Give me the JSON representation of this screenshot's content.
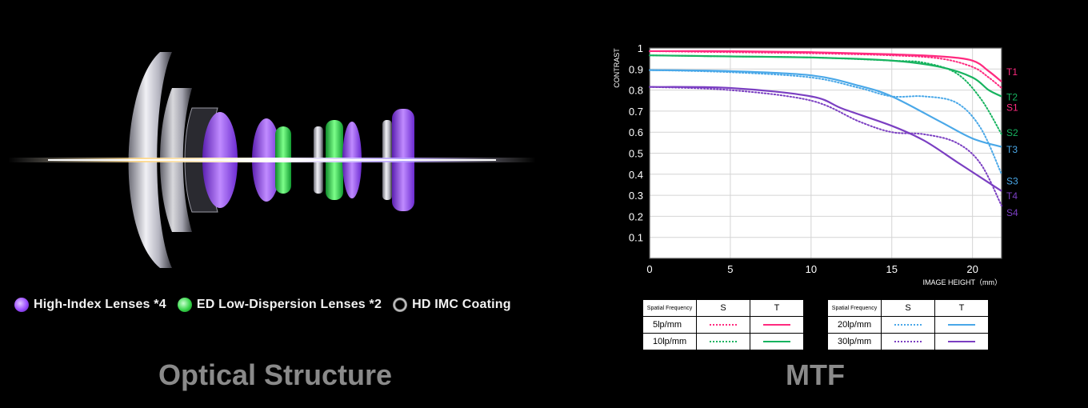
{
  "optical": {
    "title": "Optical Structure",
    "legend": [
      {
        "label": "High-Index Lenses *4",
        "color": "#9b4dff",
        "icon": "purple-lens-dot"
      },
      {
        "label": "ED Low-Dispersion Lenses *2",
        "color": "#37d64a",
        "icon": "green-lens-dot"
      },
      {
        "label": "HD IMC Coating",
        "color": "#ffffff",
        "icon": "coating-ring"
      }
    ]
  },
  "mtf": {
    "title": "MTF",
    "table_left": {
      "header": [
        "Spatial Frequency",
        "S",
        "T"
      ],
      "rows": [
        {
          "freq": "5lp/mm",
          "color": "#ff2a7f"
        },
        {
          "freq": "10lp/mm",
          "color": "#17b35f"
        }
      ]
    },
    "table_right": {
      "header": [
        "Spatial Frequency",
        "S",
        "T"
      ],
      "rows": [
        {
          "freq": "20lp/mm",
          "color": "#4aa8e8"
        },
        {
          "freq": "30lp/mm",
          "color": "#7b3fc2"
        }
      ]
    }
  },
  "chart_data": {
    "type": "line",
    "xlabel": "IMAGE HEIGHT（mm）",
    "ylabel": "CONTRAST",
    "xlim": [
      0,
      21.8
    ],
    "ylim": [
      0,
      1
    ],
    "xticks": [
      0,
      5,
      10,
      15,
      20
    ],
    "yticks": [
      0.1,
      0.2,
      0.3,
      0.4,
      0.5,
      0.6,
      0.7,
      0.8,
      0.9,
      1
    ],
    "ytick_labels": [
      "0.1",
      "0.2",
      "0.3",
      "0.4",
      "0.5",
      "0.6",
      "0.7",
      "0.8",
      "0.9",
      "1"
    ],
    "grid": true,
    "series": [
      {
        "name": "T1",
        "style": "solid",
        "color": "#ff2a7f",
        "x": [
          0,
          5,
          10,
          15,
          18,
          20,
          21,
          21.8
        ],
        "y": [
          0.985,
          0.985,
          0.98,
          0.97,
          0.96,
          0.94,
          0.89,
          0.84
        ]
      },
      {
        "name": "S1",
        "style": "dotted",
        "color": "#ff2a7f",
        "x": [
          0,
          5,
          10,
          15,
          18,
          20,
          21,
          21.8
        ],
        "y": [
          0.985,
          0.98,
          0.975,
          0.965,
          0.95,
          0.91,
          0.86,
          0.81
        ]
      },
      {
        "name": "T2",
        "style": "solid",
        "color": "#17b35f",
        "x": [
          0,
          5,
          10,
          15,
          18,
          20,
          21,
          21.8
        ],
        "y": [
          0.965,
          0.96,
          0.955,
          0.94,
          0.91,
          0.86,
          0.8,
          0.77
        ]
      },
      {
        "name": "S2",
        "style": "dotted",
        "color": "#17b35f",
        "x": [
          0,
          5,
          10,
          15,
          17,
          19,
          20.5,
          21.8
        ],
        "y": [
          0.965,
          0.96,
          0.955,
          0.94,
          0.93,
          0.88,
          0.76,
          0.59
        ]
      },
      {
        "name": "T3",
        "style": "solid",
        "color": "#4aa8e8",
        "x": [
          0,
          5,
          10,
          13,
          15,
          18,
          20,
          21.8
        ],
        "y": [
          0.895,
          0.89,
          0.87,
          0.82,
          0.77,
          0.65,
          0.57,
          0.53
        ]
      },
      {
        "name": "S3",
        "style": "dotted",
        "color": "#4aa8e8",
        "x": [
          0,
          5,
          10,
          13,
          15,
          17,
          19,
          20.5,
          21.8
        ],
        "y": [
          0.895,
          0.885,
          0.86,
          0.81,
          0.77,
          0.77,
          0.74,
          0.62,
          0.4
        ]
      },
      {
        "name": "T4",
        "style": "solid",
        "color": "#7b3fc2",
        "x": [
          0,
          5,
          10,
          12,
          15,
          17,
          19,
          21,
          21.8
        ],
        "y": [
          0.815,
          0.81,
          0.77,
          0.71,
          0.63,
          0.56,
          0.46,
          0.36,
          0.32
        ]
      },
      {
        "name": "S4",
        "style": "dotted",
        "color": "#7b3fc2",
        "x": [
          0,
          5,
          10,
          13,
          15,
          17,
          19,
          20.5,
          21.8
        ],
        "y": [
          0.815,
          0.8,
          0.75,
          0.65,
          0.6,
          0.59,
          0.55,
          0.45,
          0.25
        ]
      }
    ],
    "series_labels": [
      {
        "text": "T1",
        "color": "#ff2a7f",
        "y": 0.89
      },
      {
        "text": "T2",
        "color": "#17b35f",
        "y": 0.77
      },
      {
        "text": "S1",
        "color": "#ff2a7f",
        "y": 0.72
      },
      {
        "text": "S2",
        "color": "#17b35f",
        "y": 0.6
      },
      {
        "text": "T3",
        "color": "#4aa8e8",
        "y": 0.52
      },
      {
        "text": "S3",
        "color": "#4aa8e8",
        "y": 0.37
      },
      {
        "text": "T4",
        "color": "#7b3fc2",
        "y": 0.3
      },
      {
        "text": "S4",
        "color": "#7b3fc2",
        "y": 0.22
      }
    ]
  }
}
